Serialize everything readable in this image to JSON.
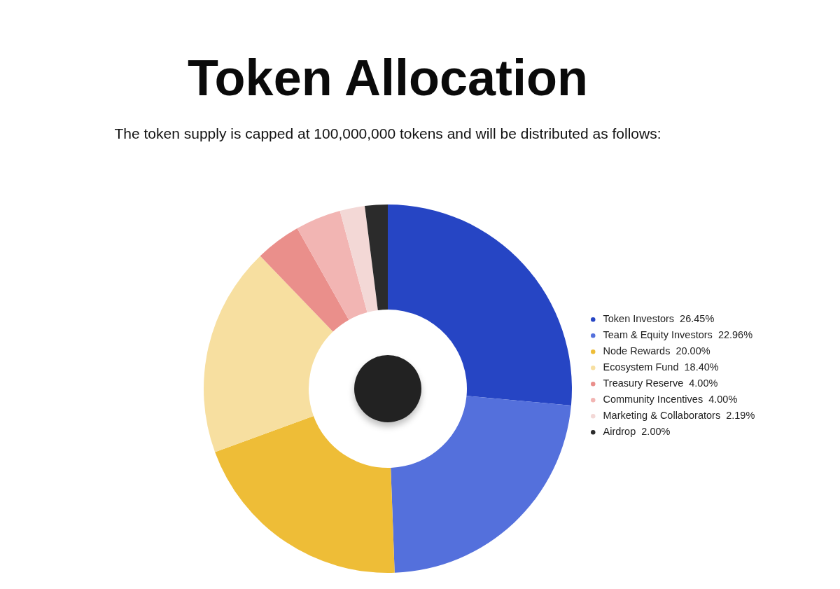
{
  "chart_data": {
    "type": "donut",
    "title": "Token Allocation",
    "subtitle": "The token supply is capped at 100,000,000 tokens and will be distributed as follows:",
    "categories": [
      "Token Investors",
      "Team & Equity Investors",
      "Node Rewards",
      "Ecosystem Fund",
      "Treasury Reserve",
      "Community Incentives",
      "Marketing & Collaborators",
      "Airdrop"
    ],
    "values": [
      26.45,
      22.96,
      20.0,
      18.4,
      4.0,
      4.0,
      2.19,
      2.0
    ],
    "value_labels": [
      "26.45%",
      "22.96%",
      "20.00%",
      "18.40%",
      "4.00%",
      "4.00%",
      "2.19%",
      "2.00%"
    ],
    "colors": [
      "#2645c4",
      "#5470dc",
      "#eebd37",
      "#f7dfa0",
      "#ea8f8b",
      "#f2b5b3",
      "#f3d8d6",
      "#2b2b2b"
    ],
    "legend": "right"
  }
}
